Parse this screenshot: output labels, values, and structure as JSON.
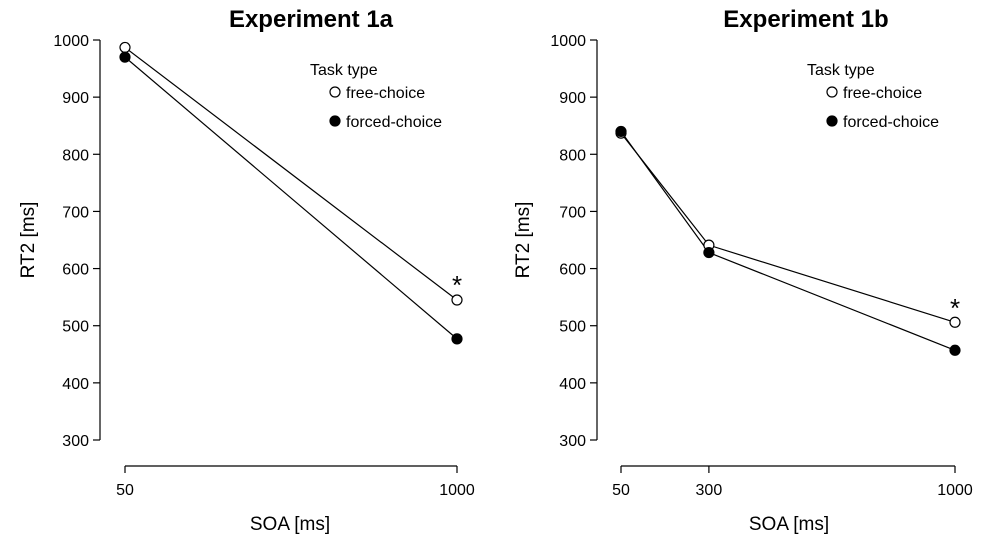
{
  "chart_data": [
    {
      "type": "line",
      "title": "Experiment 1a",
      "xlabel": "SOA [ms]",
      "ylabel": "RT2 [ms]",
      "x": [
        50,
        1000
      ],
      "x_ticks": [
        "50",
        "1000"
      ],
      "ylim": [
        300,
        1000
      ],
      "y_ticks": [
        "300",
        "400",
        "500",
        "600",
        "700",
        "800",
        "900",
        "1000"
      ],
      "legend_title": "Task type",
      "legend_position": "top-right",
      "series": [
        {
          "name": "free-choice",
          "marker": "open-circle",
          "values": [
            987,
            545
          ]
        },
        {
          "name": "forced-choice",
          "marker": "filled-circle",
          "values": [
            970,
            477
          ]
        }
      ],
      "annotations": [
        {
          "text": "*",
          "x": 1000,
          "y": 580
        }
      ]
    },
    {
      "type": "line",
      "title": "Experiment 1b",
      "xlabel": "SOA [ms]",
      "ylabel": "RT2 [ms]",
      "x": [
        50,
        300,
        1000
      ],
      "x_ticks": [
        "50",
        "300",
        "1000"
      ],
      "ylim": [
        300,
        1000
      ],
      "y_ticks": [
        "300",
        "400",
        "500",
        "600",
        "700",
        "800",
        "900",
        "1000"
      ],
      "legend_title": "Task type",
      "legend_position": "top-right",
      "series": [
        {
          "name": "free-choice",
          "marker": "open-circle",
          "values": [
            837,
            641,
            506
          ]
        },
        {
          "name": "forced-choice",
          "marker": "filled-circle",
          "values": [
            840,
            628,
            457
          ]
        }
      ],
      "annotations": [
        {
          "text": "*",
          "x": 1000,
          "y": 540
        }
      ]
    }
  ]
}
